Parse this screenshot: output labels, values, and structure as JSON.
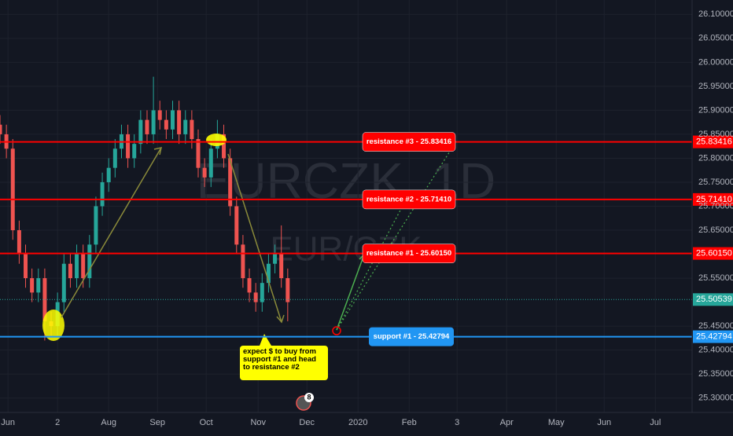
{
  "chart_data": {
    "type": "candlestick",
    "watermark": "EURCZK, 1D",
    "watermark_sub": "EUR/CZK",
    "xlim": [
      0,
      433
    ],
    "ylim": [
      25.27,
      26.13
    ],
    "xticks": [
      {
        "value": 5,
        "label": "Jun"
      },
      {
        "value": 36,
        "label": "2"
      },
      {
        "value": 68,
        "label": "Aug"
      },
      {
        "value": 98.5,
        "label": "Sep"
      },
      {
        "value": 129,
        "label": "Oct"
      },
      {
        "value": 161.5,
        "label": "Nov"
      },
      {
        "value": 192,
        "label": "Dec"
      },
      {
        "value": 224,
        "label": "2020"
      },
      {
        "value": 256,
        "label": "Feb"
      },
      {
        "value": 286,
        "label": "3"
      },
      {
        "value": 317,
        "label": "Apr"
      },
      {
        "value": 348,
        "label": "May"
      },
      {
        "value": 378,
        "label": "Jun"
      },
      {
        "value": 410,
        "label": "Jul"
      }
    ],
    "yticks": [
      {
        "value": 26.1,
        "label": "26.10000"
      },
      {
        "value": 26.05,
        "label": "26.05000"
      },
      {
        "value": 26.0,
        "label": "26.00000"
      },
      {
        "value": 25.95,
        "label": "25.95000"
      },
      {
        "value": 25.9,
        "label": "25.90000"
      },
      {
        "value": 25.85,
        "label": "25.85000"
      },
      {
        "value": 25.8,
        "label": "25.80000"
      },
      {
        "value": 25.75,
        "label": "25.75000"
      },
      {
        "value": 25.7,
        "label": "25.70000"
      },
      {
        "value": 25.65,
        "label": "25.65000"
      },
      {
        "value": 25.55,
        "label": "25.55000"
      },
      {
        "value": 25.45,
        "label": "25.45000"
      },
      {
        "value": 25.4,
        "label": "25.40000"
      },
      {
        "value": 25.35,
        "label": "25.35000"
      },
      {
        "value": 25.3,
        "label": "25.30000"
      }
    ],
    "grid": true,
    "up_color": "#26a69a",
    "down_color": "#ef5350",
    "x": [
      0,
      4,
      8,
      12,
      16,
      20,
      24,
      28,
      32,
      36,
      40,
      44,
      48,
      52,
      56,
      60,
      64,
      68,
      72,
      76,
      80,
      84,
      88,
      92,
      96,
      100,
      104,
      108,
      112,
      116,
      120,
      124,
      128,
      132,
      136,
      140,
      144,
      148,
      152,
      156,
      160,
      164,
      168,
      172,
      176,
      180
    ],
    "open": [
      25.87,
      25.85,
      25.82,
      25.65,
      25.6,
      25.55,
      25.52,
      25.55,
      25.46,
      25.45,
      25.5,
      25.58,
      25.55,
      25.6,
      25.55,
      25.62,
      25.7,
      25.75,
      25.78,
      25.82,
      25.85,
      25.8,
      25.83,
      25.88,
      25.85,
      25.9,
      25.88,
      25.86,
      25.9,
      25.85,
      25.88,
      25.84,
      25.78,
      25.76,
      25.82,
      25.85,
      25.8,
      25.7,
      25.62,
      25.55,
      25.52,
      25.5,
      25.54,
      25.58,
      25.6,
      25.55
    ],
    "high": [
      25.89,
      25.87,
      25.84,
      25.67,
      25.62,
      25.57,
      25.57,
      25.57,
      25.48,
      25.52,
      25.6,
      25.6,
      25.62,
      25.62,
      25.64,
      25.72,
      25.77,
      25.8,
      25.84,
      25.87,
      25.87,
      25.85,
      25.9,
      25.9,
      25.97,
      25.92,
      25.9,
      25.92,
      25.92,
      25.9,
      25.9,
      25.86,
      25.8,
      25.84,
      25.88,
      25.87,
      25.82,
      25.72,
      25.64,
      25.57,
      25.54,
      25.56,
      25.6,
      25.62,
      25.66,
      25.57
    ],
    "low": [
      25.83,
      25.8,
      25.63,
      25.58,
      25.53,
      25.5,
      25.5,
      25.42,
      25.43,
      25.43,
      25.48,
      25.53,
      25.53,
      25.53,
      25.53,
      25.6,
      25.68,
      25.73,
      25.76,
      25.8,
      25.78,
      25.78,
      25.81,
      25.83,
      25.83,
      25.86,
      25.84,
      25.84,
      25.83,
      25.83,
      25.82,
      25.76,
      25.74,
      25.74,
      25.8,
      25.78,
      25.68,
      25.6,
      25.53,
      25.5,
      25.48,
      25.48,
      25.52,
      25.56,
      25.53,
      25.46
    ],
    "close": [
      25.85,
      25.82,
      25.65,
      25.6,
      25.55,
      25.52,
      25.55,
      25.46,
      25.45,
      25.5,
      25.58,
      25.55,
      25.6,
      25.55,
      25.62,
      25.7,
      25.75,
      25.78,
      25.82,
      25.85,
      25.8,
      25.83,
      25.88,
      25.85,
      25.9,
      25.88,
      25.86,
      25.9,
      25.85,
      25.88,
      25.84,
      25.78,
      25.76,
      25.82,
      25.85,
      25.8,
      25.7,
      25.62,
      25.55,
      25.52,
      25.5,
      25.54,
      25.58,
      25.6,
      25.55,
      25.5
    ],
    "levels": [
      {
        "name": "resistance #3 - 25.83416",
        "value": 25.83416,
        "label": "25.83416",
        "color": "#ff0000"
      },
      {
        "name": "resistance #2 - 25.71410",
        "value": 25.7141,
        "label": "25.71410",
        "color": "#ff0000"
      },
      {
        "name": "resistance #1 - 25.60150",
        "value": 25.6015,
        "label": "25.60150",
        "color": "#ff0000"
      },
      {
        "name": "support #1 - 25.42794",
        "value": 25.42794,
        "label": "25.42794",
        "color": "#2196f3"
      }
    ],
    "last_price": {
      "value": 25.50539,
      "label": "25.50539",
      "color": "#26a69a"
    },
    "note": "expect $ to buy from support #1 and head to resistance #2",
    "badge": "8"
  }
}
